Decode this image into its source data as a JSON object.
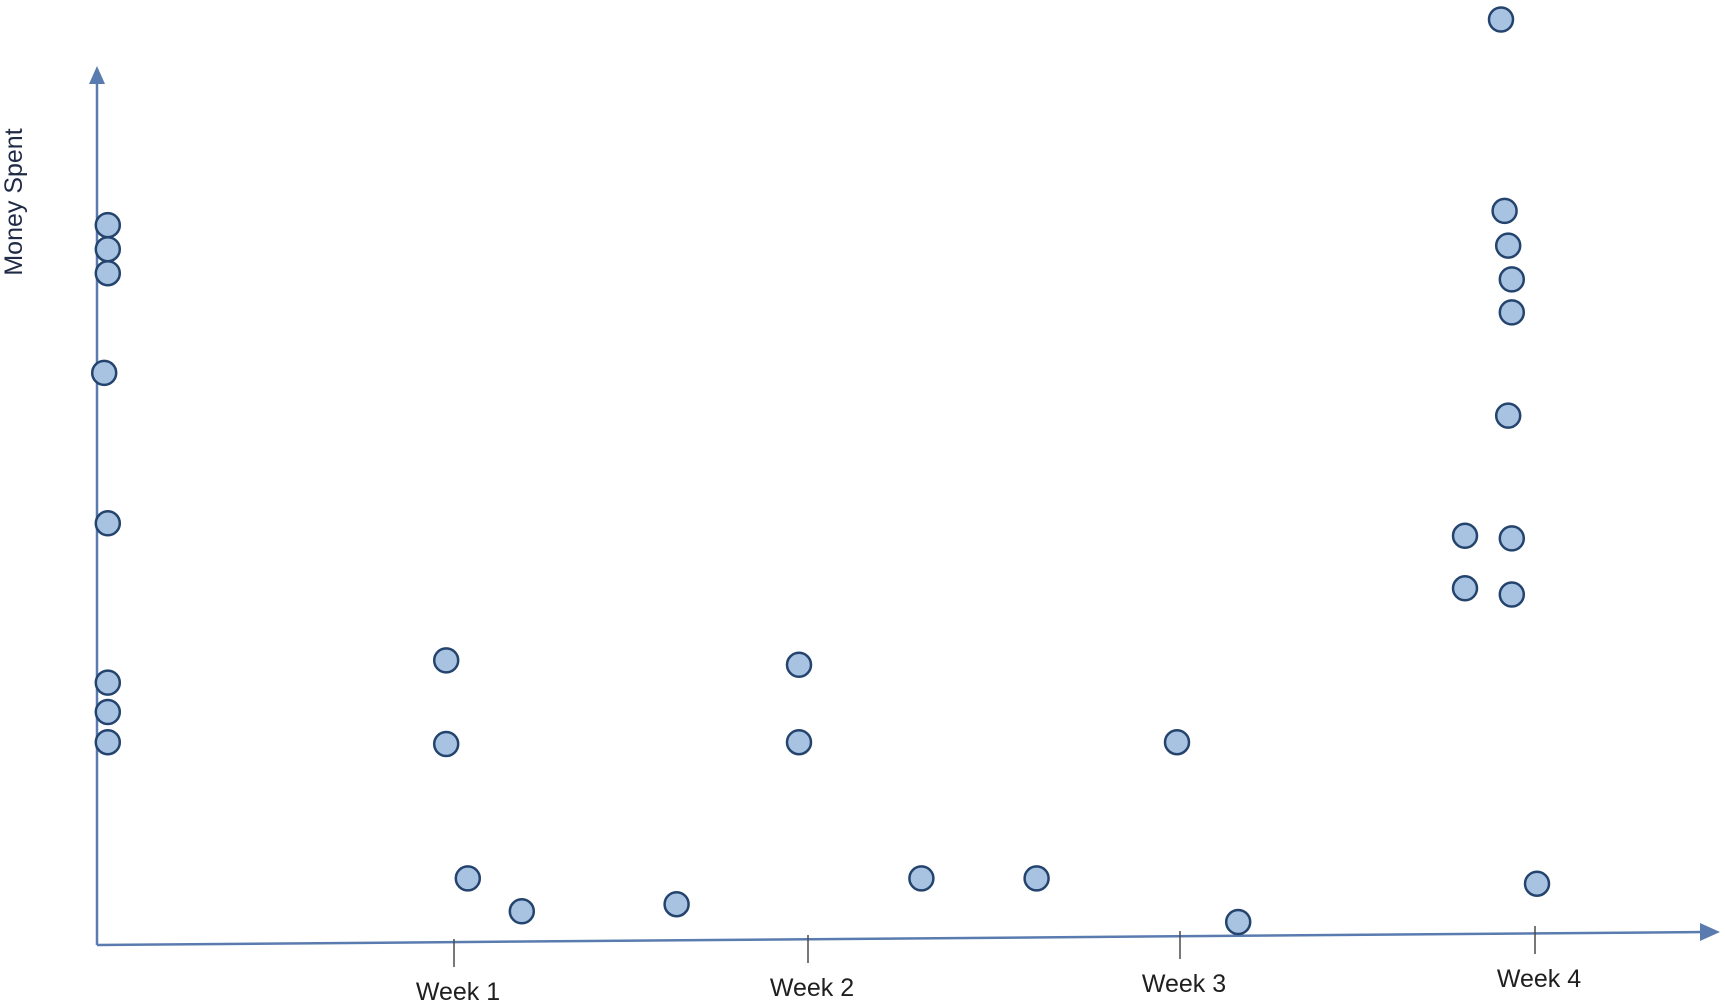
{
  "chart_data": {
    "type": "scatter",
    "title": "",
    "xlabel": "",
    "ylabel": "Money Spent",
    "categories": [
      "Week 1",
      "Week 2",
      "Week 3",
      "Week 4"
    ],
    "xlim": [
      0,
      4.5
    ],
    "ylim": [
      0,
      100
    ],
    "grid": false,
    "legend": "none",
    "colors": {
      "axis": "#5a7bb0",
      "marker_fill": "#a8c2e2",
      "marker_stroke": "#24446e",
      "tick": "#4a4a4a"
    },
    "series": [
      {
        "name": "Money Spent",
        "points": [
          {
            "x": 0.03,
            "y": 77.4
          },
          {
            "x": 0.03,
            "y": 74.7
          },
          {
            "x": 0.03,
            "y": 72.0
          },
          {
            "x": 0.02,
            "y": 60.8
          },
          {
            "x": 0.03,
            "y": 43.9
          },
          {
            "x": 0.03,
            "y": 26.0
          },
          {
            "x": 0.03,
            "y": 22.7
          },
          {
            "x": 0.03,
            "y": 19.3
          },
          {
            "x": 0.97,
            "y": 28.5
          },
          {
            "x": 0.97,
            "y": 19.1
          },
          {
            "x": 1.03,
            "y": 4.0
          },
          {
            "x": 1.18,
            "y": 0.3
          },
          {
            "x": 1.61,
            "y": 1.1
          },
          {
            "x": 1.95,
            "y": 28.0
          },
          {
            "x": 1.95,
            "y": 19.3
          },
          {
            "x": 2.29,
            "y": 4.0
          },
          {
            "x": 2.61,
            "y": 4.0
          },
          {
            "x": 3.0,
            "y": 19.3
          },
          {
            "x": 3.17,
            "y": -0.9
          },
          {
            "x": 3.9,
            "y": 100.5
          },
          {
            "x": 3.91,
            "y": 79.0
          },
          {
            "x": 3.92,
            "y": 75.1
          },
          {
            "x": 3.93,
            "y": 71.3
          },
          {
            "x": 3.93,
            "y": 67.6
          },
          {
            "x": 3.92,
            "y": 56.0
          },
          {
            "x": 3.8,
            "y": 42.5
          },
          {
            "x": 3.93,
            "y": 42.2
          },
          {
            "x": 3.8,
            "y": 36.6
          },
          {
            "x": 3.93,
            "y": 35.9
          },
          {
            "x": 4.0,
            "y": 3.4
          }
        ]
      }
    ]
  }
}
